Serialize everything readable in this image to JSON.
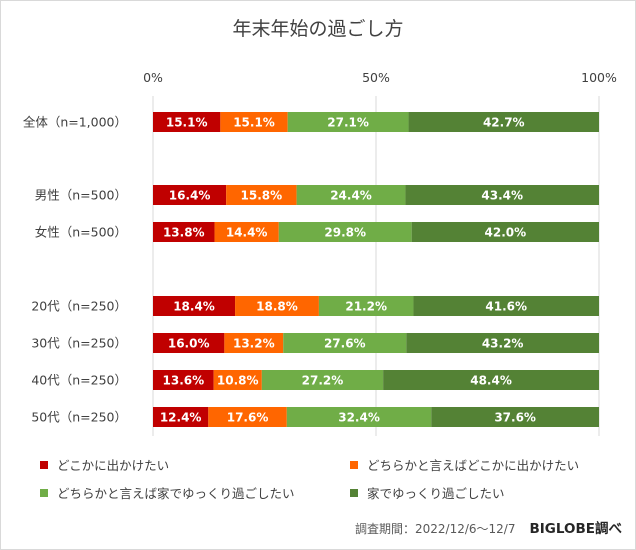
{
  "chart_data": {
    "type": "bar",
    "orientation": "horizontal",
    "stacked": true,
    "normalized": true,
    "title": "年末年始の過ごし方",
    "categories": [
      "全体（n=1,000）",
      "男性（n=500）",
      "女性（n=500）",
      "20代（n=250）",
      "30代（n=250）",
      "40代（n=250）",
      "50代（n=250）"
    ],
    "groups": [
      [
        0
      ],
      [
        1,
        2
      ],
      [
        3,
        4,
        5,
        6
      ]
    ],
    "x_ticks": [
      "0%",
      "50%",
      "100%"
    ],
    "xlim": [
      0,
      100
    ],
    "series": [
      {
        "name": "どこかに出かけたい",
        "color": "#c00000",
        "values": [
          15.1,
          16.4,
          13.8,
          18.4,
          16.0,
          13.6,
          12.4
        ],
        "labels": [
          "15.1%",
          "16.4%",
          "13.8%",
          "18.4%",
          "16.0%",
          "13.6%",
          "12.4%"
        ]
      },
      {
        "name": "どちらかと言えばどこかに出かけたい",
        "color": "#ff6600",
        "values": [
          15.1,
          15.8,
          14.4,
          18.8,
          13.2,
          10.8,
          17.6
        ],
        "labels": [
          "15.1%",
          "15.8%",
          "14.4%",
          "18.8%",
          "13.2%",
          "10.8%",
          "17.6%"
        ]
      },
      {
        "name": "どちらかと言えば家でゆっくり過ごしたい",
        "color": "#70ad47",
        "values": [
          27.1,
          24.4,
          29.8,
          21.2,
          27.6,
          27.2,
          32.4
        ],
        "labels": [
          "27.1%",
          "24.4%",
          "29.8%",
          "21.2%",
          "27.6%",
          "27.2%",
          "32.4%"
        ]
      },
      {
        "name": "家でゆっくり過ごしたい",
        "color": "#548235",
        "values": [
          42.7,
          43.4,
          42.0,
          41.6,
          43.2,
          48.4,
          37.6
        ],
        "labels": [
          "42.7%",
          "43.4%",
          "42.0%",
          "41.6%",
          "43.2%",
          "48.4%",
          "37.6%"
        ]
      }
    ],
    "gridlines": true,
    "legend_position": "bottom"
  },
  "source": {
    "note": "調査期間：2022/12/6～12/7",
    "brand": "BIGLOBE調べ"
  }
}
